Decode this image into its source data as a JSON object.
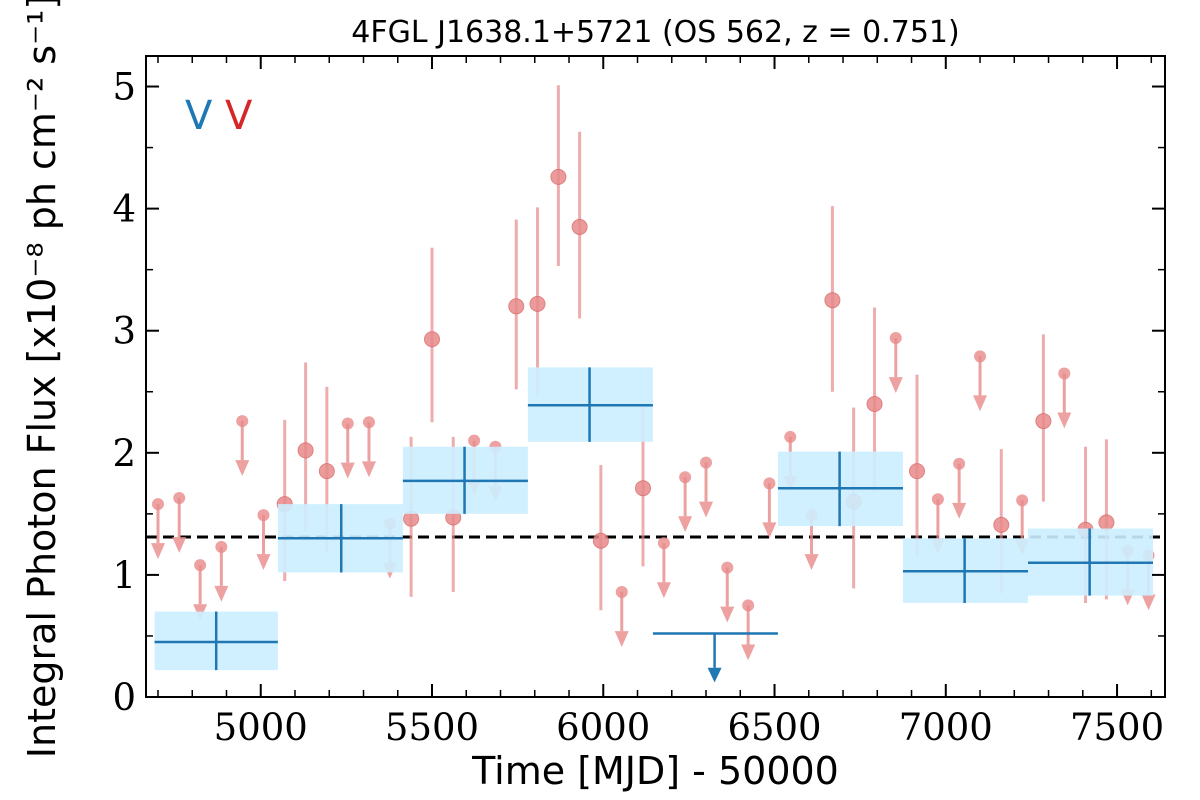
{
  "chart_data": {
    "type": "scatter",
    "title": "4FGL J1638.1+5721 (OS 562, z = 0.751)",
    "xlabel": "Time [MJD] - 50000",
    "ylabel": "Integral Photon Flux [x10⁻⁸ ph cm⁻² s⁻¹]",
    "xlim": [
      4665,
      7640
    ],
    "ylim": [
      0,
      5.25
    ],
    "xticks": [
      5000,
      5500,
      6000,
      6500,
      7000,
      7500
    ],
    "yticks": [
      0,
      1,
      2,
      3,
      4,
      5
    ],
    "grid": false,
    "legend": {
      "placement": "top-left",
      "entries": [
        {
          "label": "V",
          "color": "#1f77b4"
        },
        {
          "label": "V",
          "color": "#d62728"
        }
      ]
    },
    "mean_flux": 1.31,
    "colors": {
      "long_bin": "#1f77b4",
      "long_bin_band": "#cceeff",
      "short_bin": "#e88a8a",
      "mean_line": "#000000"
    },
    "series": [
      {
        "name": "",
        "binning": "long",
        "points": [
          {
            "x": 4870,
            "x0": 4690,
            "x1": 5050,
            "y": 0.45,
            "ylo": 0.22,
            "yhi": 0.7,
            "upper_limit": false
          },
          {
            "x": 5235,
            "x0": 5050,
            "x1": 5415,
            "y": 1.3,
            "ylo": 1.02,
            "yhi": 1.58,
            "upper_limit": false
          },
          {
            "x": 5595,
            "x0": 5415,
            "x1": 5780,
            "y": 1.77,
            "ylo": 1.5,
            "yhi": 2.05,
            "upper_limit": false
          },
          {
            "x": 5960,
            "x0": 5780,
            "x1": 6145,
            "y": 2.39,
            "ylo": 2.09,
            "yhi": 2.7,
            "upper_limit": false
          },
          {
            "x": 6325,
            "x0": 6145,
            "x1": 6510,
            "y": 0.52,
            "upper_limit": true
          },
          {
            "x": 6690,
            "x0": 6510,
            "x1": 6875,
            "y": 1.71,
            "ylo": 1.4,
            "yhi": 2.01,
            "upper_limit": false
          },
          {
            "x": 7055,
            "x0": 6875,
            "x1": 7240,
            "y": 1.03,
            "ylo": 0.77,
            "yhi": 1.3,
            "upper_limit": false
          },
          {
            "x": 7420,
            "x0": 7240,
            "x1": 7605,
            "y": 1.1,
            "ylo": 0.83,
            "yhi": 1.38,
            "upper_limit": false
          }
        ]
      },
      {
        "name": "",
        "binning": "short",
        "points": [
          {
            "x": 4700,
            "y": 1.58,
            "upper_limit": true
          },
          {
            "x": 4762,
            "y": 1.63,
            "upper_limit": true
          },
          {
            "x": 4823,
            "y": 1.08,
            "upper_limit": true
          },
          {
            "x": 4885,
            "y": 1.23,
            "upper_limit": true
          },
          {
            "x": 4946,
            "y": 2.26,
            "upper_limit": true
          },
          {
            "x": 5008,
            "y": 1.49,
            "upper_limit": true
          },
          {
            "x": 5070,
            "y": 1.58,
            "ylo": 0.95,
            "yhi": 2.27,
            "upper_limit": false
          },
          {
            "x": 5131,
            "y": 2.02,
            "ylo": 1.35,
            "yhi": 2.74,
            "upper_limit": false
          },
          {
            "x": 5193,
            "y": 1.85,
            "ylo": 1.18,
            "yhi": 2.54,
            "upper_limit": false
          },
          {
            "x": 5254,
            "y": 2.24,
            "upper_limit": true
          },
          {
            "x": 5316,
            "y": 2.25,
            "upper_limit": true
          },
          {
            "x": 5377,
            "y": 1.42,
            "upper_limit": true
          },
          {
            "x": 5439,
            "y": 1.46,
            "ylo": 0.82,
            "yhi": 2.13,
            "upper_limit": false
          },
          {
            "x": 5500,
            "y": 2.93,
            "ylo": 2.25,
            "yhi": 3.68,
            "upper_limit": false
          },
          {
            "x": 5562,
            "y": 1.47,
            "ylo": 0.86,
            "yhi": 2.13,
            "upper_limit": false
          },
          {
            "x": 5623,
            "y": 2.1,
            "upper_limit": true
          },
          {
            "x": 5685,
            "y": 2.05,
            "upper_limit": true
          },
          {
            "x": 5746,
            "y": 3.2,
            "ylo": 2.52,
            "yhi": 3.91,
            "upper_limit": false
          },
          {
            "x": 5808,
            "y": 3.22,
            "ylo": 2.47,
            "yhi": 4.01,
            "upper_limit": false
          },
          {
            "x": 5869,
            "y": 4.26,
            "ylo": 3.53,
            "yhi": 5.01,
            "upper_limit": false
          },
          {
            "x": 5931,
            "y": 3.85,
            "ylo": 3.1,
            "yhi": 4.63,
            "upper_limit": false
          },
          {
            "x": 5993,
            "y": 1.28,
            "ylo": 0.71,
            "yhi": 1.9,
            "upper_limit": false
          },
          {
            "x": 6054,
            "y": 0.86,
            "upper_limit": true
          },
          {
            "x": 6116,
            "y": 1.71,
            "ylo": 1.07,
            "yhi": 2.4,
            "upper_limit": false
          },
          {
            "x": 6177,
            "y": 1.26,
            "upper_limit": true
          },
          {
            "x": 6239,
            "y": 1.8,
            "upper_limit": true
          },
          {
            "x": 6300,
            "y": 1.92,
            "upper_limit": true
          },
          {
            "x": 6362,
            "y": 1.06,
            "upper_limit": true
          },
          {
            "x": 6423,
            "y": 0.75,
            "upper_limit": true
          },
          {
            "x": 6485,
            "y": 1.75,
            "upper_limit": true
          },
          {
            "x": 6546,
            "y": 2.13,
            "upper_limit": true
          },
          {
            "x": 6608,
            "y": 1.49,
            "upper_limit": true
          },
          {
            "x": 6669,
            "y": 3.25,
            "ylo": 2.5,
            "yhi": 4.02,
            "upper_limit": false
          },
          {
            "x": 6731,
            "y": 1.6,
            "ylo": 0.89,
            "yhi": 2.37,
            "upper_limit": false
          },
          {
            "x": 6792,
            "y": 2.4,
            "ylo": 1.68,
            "yhi": 3.19,
            "upper_limit": false
          },
          {
            "x": 6854,
            "y": 2.94,
            "upper_limit": true
          },
          {
            "x": 6916,
            "y": 1.85,
            "ylo": 1.15,
            "yhi": 2.64,
            "upper_limit": false
          },
          {
            "x": 6977,
            "y": 1.62,
            "upper_limit": true
          },
          {
            "x": 7039,
            "y": 1.91,
            "upper_limit": true
          },
          {
            "x": 7100,
            "y": 2.79,
            "upper_limit": true
          },
          {
            "x": 7162,
            "y": 1.41,
            "ylo": 0.85,
            "yhi": 2.03,
            "upper_limit": false
          },
          {
            "x": 7223,
            "y": 1.61,
            "upper_limit": true
          },
          {
            "x": 7285,
            "y": 2.26,
            "ylo": 1.6,
            "yhi": 2.97,
            "upper_limit": false
          },
          {
            "x": 7346,
            "y": 2.65,
            "upper_limit": true
          },
          {
            "x": 7408,
            "y": 1.37,
            "ylo": 0.77,
            "yhi": 2.05,
            "upper_limit": false
          },
          {
            "x": 7469,
            "y": 1.43,
            "ylo": 0.8,
            "yhi": 2.11,
            "upper_limit": false
          },
          {
            "x": 7531,
            "y": 1.2,
            "upper_limit": true
          },
          {
            "x": 7592,
            "y": 1.16,
            "upper_limit": true
          }
        ]
      }
    ]
  }
}
